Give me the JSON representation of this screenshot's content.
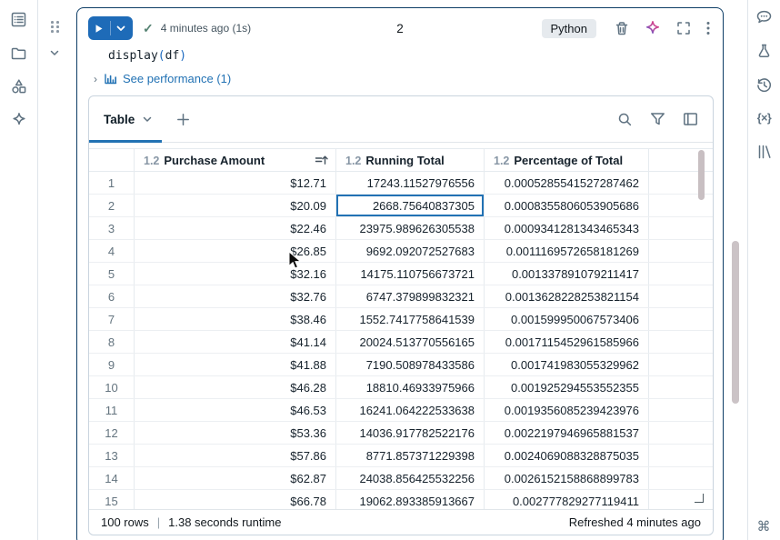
{
  "colors": {
    "accent_blue": "#2272b4",
    "card_border": "#0d3d66",
    "icon_gray": "#5f7281",
    "scrollbar_thumb": "#c8bfc2",
    "success_check": "#568373"
  },
  "left_rail": {
    "icons": [
      "workspace-icon",
      "folder-icon",
      "shapes-icon",
      "sparkle-icon"
    ]
  },
  "right_rail": {
    "icons": [
      "comments-icon",
      "experiments-icon",
      "history-icon",
      "variables-icon",
      "library-icon",
      "command-icon"
    ]
  },
  "cell": {
    "status_time": "4 minutes ago (1s)",
    "check": "✓",
    "cell_number": "2",
    "language_badge": "Python",
    "code": {
      "fn": "display",
      "open_paren": "(",
      "arg": "df",
      "close_paren": ")"
    },
    "perf_chevron": "›",
    "performance_link": "See performance (1)",
    "variables_glyph": "{×}",
    "command_glyph": "⌘"
  },
  "results": {
    "active_tab": "Table",
    "footer": {
      "rows": "100 rows",
      "separator": "|",
      "runtime": "1.38 seconds runtime",
      "refreshed": "Refreshed 4 minutes ago"
    }
  },
  "table": {
    "type_prefix": "1.2",
    "columns": [
      "Purchase Amount",
      "Running Total",
      "Percentage of Total"
    ],
    "sorted_column": "Purchase Amount",
    "selected_cell": {
      "row": 2,
      "column": "Running Total"
    },
    "fields": [
      "purchase",
      "running",
      "pct"
    ],
    "rows": [
      {
        "n": "1",
        "purchase": "$12.71",
        "running": "17243.11527976556",
        "pct": "0.0005285541527287462"
      },
      {
        "n": "2",
        "purchase": "$20.09",
        "running": "2668.75640837305",
        "pct": "0.0008355806053905686"
      },
      {
        "n": "3",
        "purchase": "$22.46",
        "running": "23975.989626305538",
        "pct": "0.0009341281343465343"
      },
      {
        "n": "4",
        "purchase": "$26.85",
        "running": "9692.092072527683",
        "pct": "0.0011169572658181269"
      },
      {
        "n": "5",
        "purchase": "$32.16",
        "running": "14175.110756673721",
        "pct": "0.001337891079211417"
      },
      {
        "n": "6",
        "purchase": "$32.76",
        "running": "6747.379899832321",
        "pct": "0.0013628228253821154"
      },
      {
        "n": "7",
        "purchase": "$38.46",
        "running": "1552.7417758641539",
        "pct": "0.001599950067573406"
      },
      {
        "n": "8",
        "purchase": "$41.14",
        "running": "20024.513770556165",
        "pct": "0.0017115452961585966"
      },
      {
        "n": "9",
        "purchase": "$41.88",
        "running": "7190.508978433586",
        "pct": "0.001741983055329962"
      },
      {
        "n": "10",
        "purchase": "$46.28",
        "running": "18810.46933975966",
        "pct": "0.001925294553552355"
      },
      {
        "n": "11",
        "purchase": "$46.53",
        "running": "16241.064222533638",
        "pct": "0.0019356085239423976"
      },
      {
        "n": "12",
        "purchase": "$53.36",
        "running": "14036.917782522176",
        "pct": "0.0022197946965881537"
      },
      {
        "n": "13",
        "purchase": "$57.86",
        "running": "8771.857371229398",
        "pct": "0.0024069088328875035"
      },
      {
        "n": "14",
        "purchase": "$62.87",
        "running": "24038.856425532256",
        "pct": "0.0026152158868899783"
      },
      {
        "n": "15",
        "purchase": "$66.78",
        "running": "19062.893385913667",
        "pct": "0.002777829277119411"
      }
    ]
  }
}
